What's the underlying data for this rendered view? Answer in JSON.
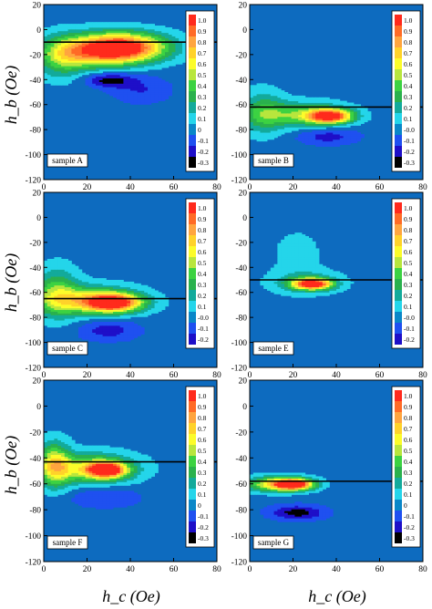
{
  "figure": {
    "ylabel": "h_b (Oe)",
    "xlabel": "h_c (Oe)"
  },
  "colors": {
    "background_level": "#0d6bbf",
    "levels": [
      "#000000",
      "#1e0fc8",
      "#1f50f0",
      "#0a87c8",
      "#24d5ea",
      "#13aa9b",
      "#2ab14d",
      "#3cd242",
      "#b8e63d",
      "#fcfc2a",
      "#ffd22a",
      "#ffa53f",
      "#ff6b26",
      "#ff2a1c"
    ]
  },
  "chart_data": [
    {
      "type": "heatmap",
      "name": "sample A",
      "label": "sample A",
      "xlim": [
        0,
        80
      ],
      "ylim": [
        -120,
        20
      ],
      "x_ticks": [
        0,
        20,
        40,
        60,
        80
      ],
      "y_ticks": [
        -120,
        -100,
        -80,
        -60,
        -40,
        -20,
        0,
        20
      ],
      "colorbar": [
        "1.0",
        "0.9",
        "0.8",
        "0.7",
        "0.6",
        "0.5",
        "0.4",
        "0.3",
        "0.2",
        "0.1",
        "0",
        "-0.1",
        "-0.2",
        "-0.3"
      ],
      "reference_line_hb": -10,
      "peaks": [
        {
          "hc": 37,
          "hb": -14,
          "value": 1.0,
          "sx": 14,
          "sy": 8
        },
        {
          "hc": 22,
          "hb": -18,
          "value": 0.5,
          "sx": 14,
          "sy": 9
        },
        {
          "hc": 8,
          "hb": -22,
          "value": 0.3,
          "sx": 8,
          "sy": 12
        },
        {
          "hc": 30,
          "hb": -40,
          "value": -0.3,
          "sx": 8,
          "sy": 4
        },
        {
          "hc": 45,
          "hb": -48,
          "value": -0.15,
          "sx": 10,
          "sy": 8
        }
      ]
    },
    {
      "type": "heatmap",
      "name": "sample B",
      "label": "sample B",
      "xlim": [
        0,
        80
      ],
      "ylim": [
        -120,
        20
      ],
      "x_ticks": [
        0,
        20,
        40,
        60,
        80
      ],
      "y_ticks": [
        -120,
        -100,
        -80,
        -60,
        -40,
        -20,
        0,
        20
      ],
      "colorbar": [
        "1.0",
        "0.9",
        "0.8",
        "0.7",
        "0.6",
        "0.5",
        "0.4",
        "0.3",
        "0.2",
        "0.1",
        "-0.0",
        "-0.1",
        "-0.2",
        "-0.3"
      ],
      "reference_line_hb": -62,
      "peaks": [
        {
          "hc": 37,
          "hb": -69,
          "value": 1.0,
          "sx": 7,
          "sy": 4
        },
        {
          "hc": 24,
          "hb": -68,
          "value": 0.4,
          "sx": 14,
          "sy": 7
        },
        {
          "hc": 6,
          "hb": -66,
          "value": 0.3,
          "sx": 7,
          "sy": 12
        },
        {
          "hc": 36,
          "hb": -85,
          "value": -0.2,
          "sx": 10,
          "sy": 5
        }
      ]
    },
    {
      "type": "heatmap",
      "name": "sample C",
      "label": "sample C",
      "xlim": [
        0,
        80
      ],
      "ylim": [
        -120,
        20
      ],
      "x_ticks": [
        0,
        20,
        40,
        60,
        80
      ],
      "y_ticks": [
        -120,
        -100,
        -80,
        -60,
        -40,
        -20,
        0,
        20
      ],
      "colorbar": [
        "1.0",
        "0.9",
        "0.8",
        "0.7",
        "0.6",
        "0.5",
        "0.4",
        "0.3",
        "0.2",
        "0.1",
        "-0.0",
        "-0.1",
        "-0.2"
      ],
      "reference_line_hb": -65,
      "peaks": [
        {
          "hc": 32,
          "hb": -68,
          "value": 1.0,
          "sx": 9,
          "sy": 5
        },
        {
          "hc": 20,
          "hb": -66,
          "value": 0.5,
          "sx": 16,
          "sy": 8
        },
        {
          "hc": 6,
          "hb": -60,
          "value": 0.35,
          "sx": 7,
          "sy": 14
        },
        {
          "hc": 30,
          "hb": -90,
          "value": -0.2,
          "sx": 10,
          "sy": 6
        }
      ]
    },
    {
      "type": "heatmap",
      "name": "sample E",
      "label": "sample E",
      "xlim": [
        0,
        80
      ],
      "ylim": [
        -120,
        20
      ],
      "x_ticks": [
        0,
        20,
        40,
        60,
        80
      ],
      "y_ticks": [
        -120,
        -100,
        -80,
        -60,
        -40,
        -20,
        0,
        20
      ],
      "colorbar": [
        "1.0",
        "0.9",
        "0.8",
        "0.7",
        "0.6",
        "0.5",
        "0.4",
        "0.3",
        "0.2",
        "0.1",
        "-0.0",
        "-0.1",
        "-0.2"
      ],
      "reference_line_hb": -50,
      "peaks": [
        {
          "hc": 29,
          "hb": -53,
          "value": 1.0,
          "sx": 6,
          "sy": 3
        },
        {
          "hc": 26,
          "hb": -52,
          "value": 0.25,
          "sx": 11,
          "sy": 6
        },
        {
          "hc": 22,
          "hb": -30,
          "value": 0.08,
          "sx": 10,
          "sy": 18
        }
      ]
    },
    {
      "type": "heatmap",
      "name": "sample F",
      "label": "sample F",
      "xlim": [
        0,
        80
      ],
      "ylim": [
        -120,
        20
      ],
      "x_ticks": [
        0,
        20,
        40,
        60,
        80
      ],
      "y_ticks": [
        -120,
        -100,
        -80,
        -60,
        -40,
        -20,
        0,
        20
      ],
      "colorbar": [
        "1.0",
        "0.9",
        "0.8",
        "0.7",
        "0.6",
        "0.5",
        "0.4",
        "0.3",
        "0.2",
        "0.1",
        "0",
        "-0.1",
        "-0.2",
        "-0.3"
      ],
      "reference_line_hb": -43,
      "peaks": [
        {
          "hc": 29,
          "hb": -49,
          "value": 1.0,
          "sx": 6,
          "sy": 4
        },
        {
          "hc": 22,
          "hb": -48,
          "value": 0.55,
          "sx": 14,
          "sy": 8
        },
        {
          "hc": 5,
          "hb": -45,
          "value": 0.55,
          "sx": 5,
          "sy": 12
        },
        {
          "hc": 28,
          "hb": -70,
          "value": -0.15,
          "sx": 12,
          "sy": 6
        }
      ]
    },
    {
      "type": "heatmap",
      "name": "sample G",
      "label": "sample G",
      "xlim": [
        0,
        80
      ],
      "ylim": [
        -120,
        20
      ],
      "x_ticks": [
        0,
        20,
        40,
        60,
        80
      ],
      "y_ticks": [
        -120,
        -100,
        -80,
        -60,
        -40,
        -20,
        0,
        20
      ],
      "colorbar": [
        "1.0",
        "0.9",
        "0.8",
        "0.7",
        "0.6",
        "0.5",
        "0.4",
        "0.3",
        "0.2",
        "0.1",
        "0",
        "-0.1",
        "-0.2",
        "-0.3"
      ],
      "reference_line_hb": -58,
      "peaks": [
        {
          "hc": 21,
          "hb": -60,
          "value": 1.0,
          "sx": 6,
          "sy": 3
        },
        {
          "hc": 12,
          "hb": -60,
          "value": 0.65,
          "sx": 9,
          "sy": 4
        },
        {
          "hc": 22,
          "hb": -82,
          "value": -0.3,
          "sx": 9,
          "sy": 4
        }
      ]
    }
  ]
}
